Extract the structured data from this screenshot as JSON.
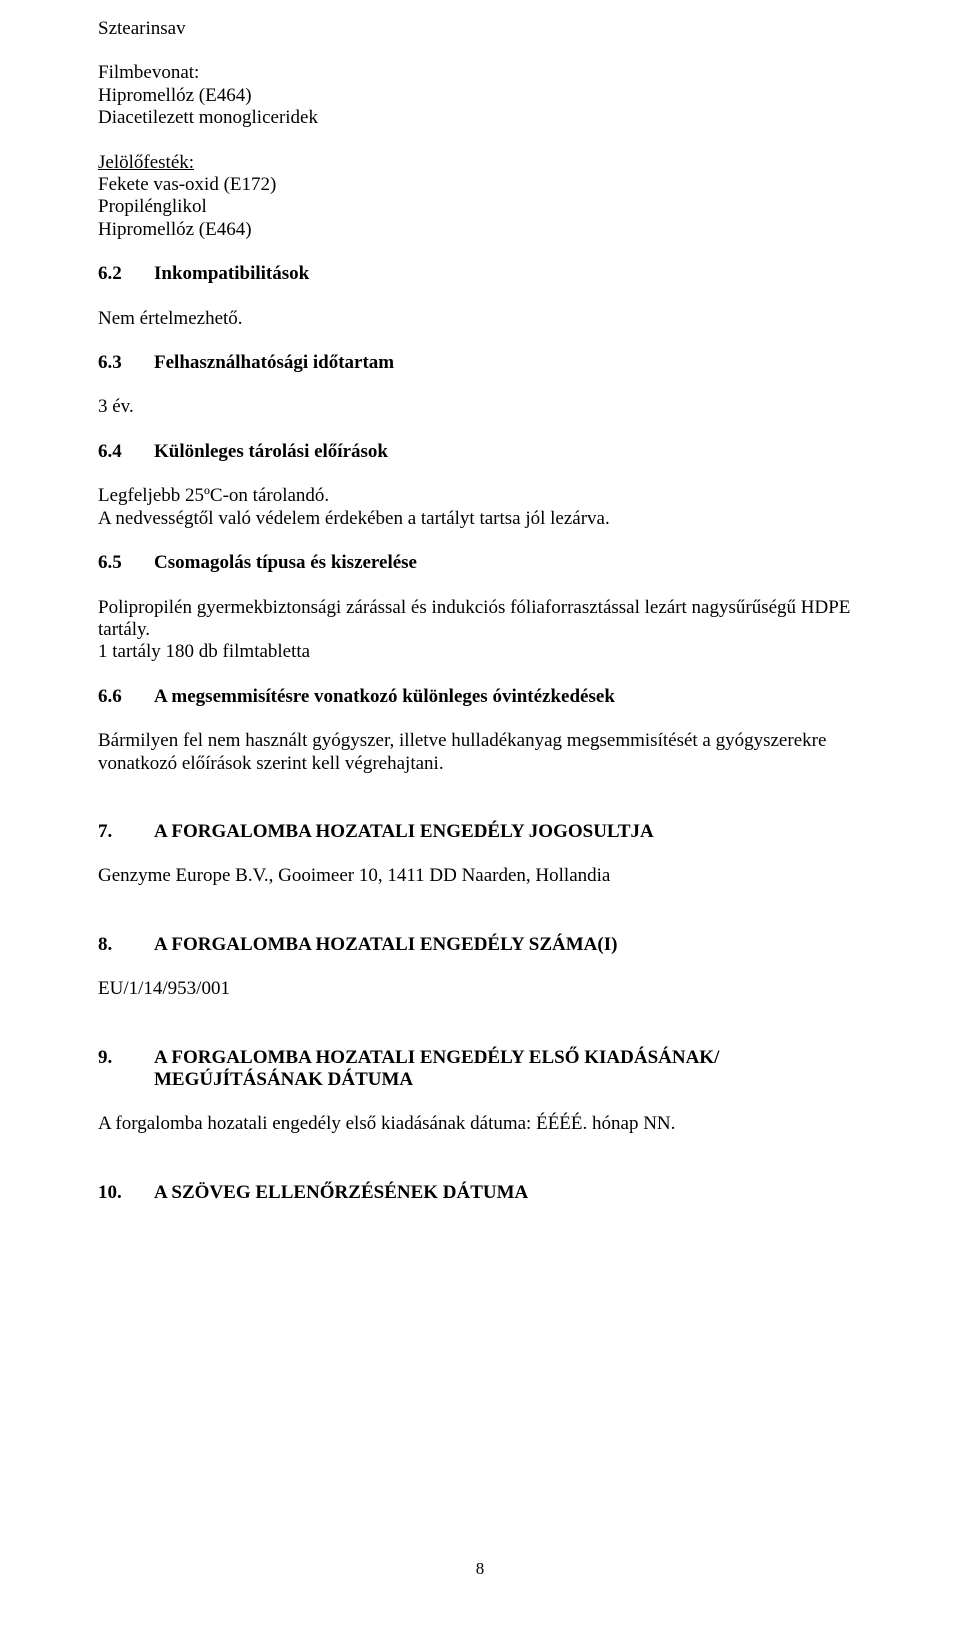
{
  "top": {
    "line1": "Sztearinsav",
    "coating_label": "Filmbevonat:",
    "coating_1": "Hipromellóz (E464)",
    "coating_2": "Diacetilezett monogliceridek",
    "dye_label": "Jelölőfesték:",
    "dye_1": "Fekete vas-oxid (E172)",
    "dye_2": "Propilénglikol",
    "dye_3": "Hipromellóz (E464)"
  },
  "s62": {
    "num": "6.2",
    "title": "Inkompatibilitások",
    "body": "Nem értelmezhető."
  },
  "s63": {
    "num": "6.3",
    "title": "Felhasználhatósági időtartam",
    "body": "3 év."
  },
  "s64": {
    "num": "6.4",
    "title": "Különleges tárolási előírások",
    "body1": "Legfeljebb 25ºC-on tárolandó.",
    "body2": "A nedvességtől való védelem érdekében a tartályt tartsa jól lezárva."
  },
  "s65": {
    "num": "6.5",
    "title": "Csomagolás típusa és kiszerelése",
    "body1": "Polipropilén gyermekbiztonsági zárással és indukciós fóliaforrasztással lezárt nagysűrűségű HDPE tartály.",
    "body2": "1 tartály 180 db filmtabletta"
  },
  "s66": {
    "num": "6.6",
    "title": "A megsemmisítésre vonatkozó különleges óvintézkedések",
    "body": "Bármilyen fel nem használt gyógyszer, illetve hulladékanyag megsemmisítését a gyógyszerekre vonatkozó előírások szerint kell végrehajtani."
  },
  "s7": {
    "num": "7.",
    "title": "A FORGALOMBA HOZATALI ENGEDÉLY JOGOSULTJA",
    "body": "Genzyme Europe B.V., Gooimeer 10, 1411 DD Naarden, Hollandia"
  },
  "s8": {
    "num": "8.",
    "title": "A FORGALOMBA HOZATALI ENGEDÉLY SZÁMA(I)",
    "body": "EU/1/14/953/001"
  },
  "s9": {
    "num": "9.",
    "title1": "A FORGALOMBA HOZATALI ENGEDÉLY ELSŐ KIADÁSÁNAK/",
    "title2": "MEGÚJÍTÁSÁNAK DÁTUMA",
    "body": "A forgalomba hozatali engedély első kiadásának dátuma: ÉÉÉÉ. hónap NN."
  },
  "s10": {
    "num": "10.",
    "title": "A SZÖVEG ELLENŐRZÉSÉNEK DÁTUMA"
  },
  "pagenum": "8"
}
